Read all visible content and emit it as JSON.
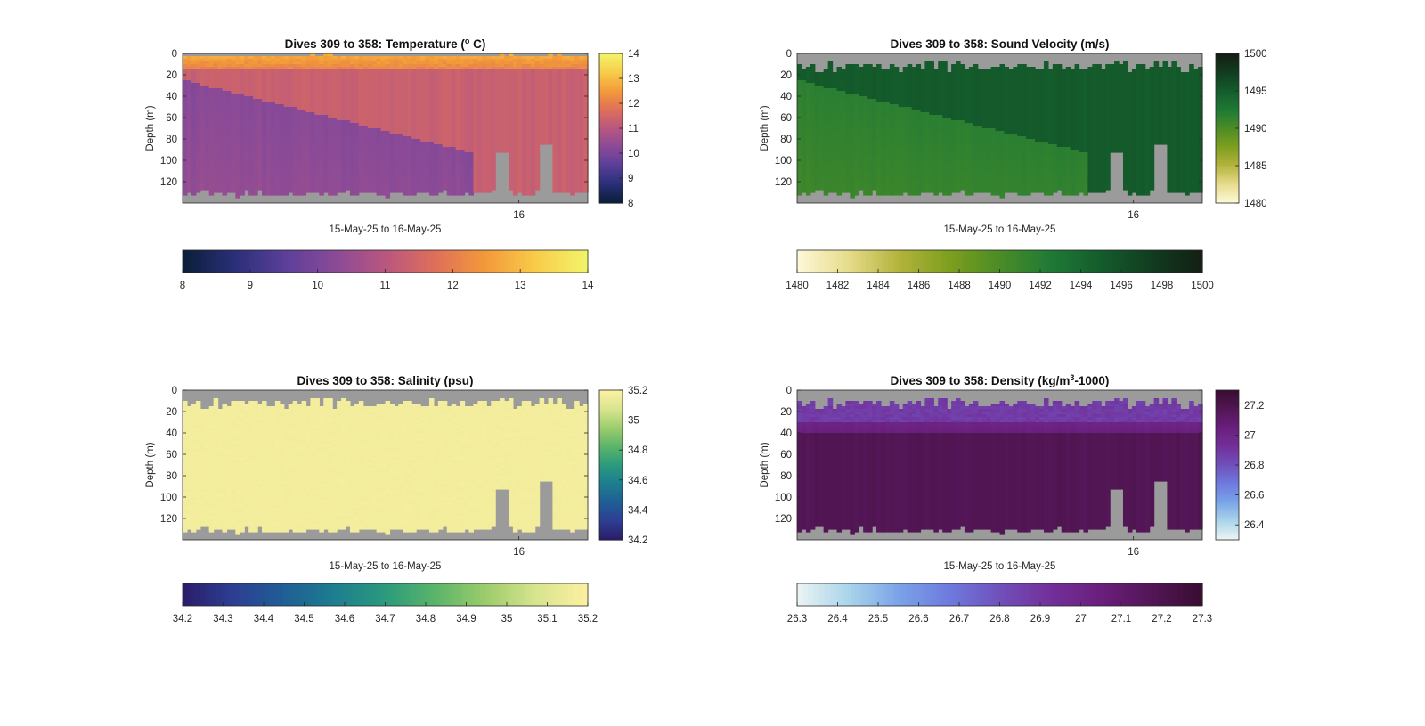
{
  "colors": {
    "mask": "#9b9b9b",
    "axis": "#262626"
  },
  "chart_data": [
    {
      "type": "heatmap",
      "variable": "temperature",
      "title_main": "Dives 309 to 358: Temperature (",
      "title_sup": "o",
      "title_end": " C)",
      "xlabel": "15-May-25 to 16-May-25",
      "ylabel": "Depth (m)",
      "x_ticks": [
        "16"
      ],
      "y_ticks": [
        0,
        20,
        40,
        60,
        80,
        100,
        120
      ],
      "ylim": [
        0,
        140
      ],
      "colorbar_range": [
        8,
        14
      ],
      "colorbar_ticks": [
        "8",
        "9",
        "10",
        "11",
        "12",
        "13",
        "14"
      ],
      "h_colorbar_ticks": [
        "8",
        "9",
        "10",
        "11",
        "12",
        "13",
        "14"
      ],
      "colormap": [
        "#0b1f3a",
        "#2a2f78",
        "#5b3f9a",
        "#8a4a97",
        "#b8577f",
        "#df6f5a",
        "#f29a3a",
        "#f8cc49",
        "#f2f36a"
      ]
    },
    {
      "type": "heatmap",
      "variable": "sound_velocity",
      "title_main": "Dives 309 to 358: Sound Velocity (m/s)",
      "title_sup": "",
      "title_end": "",
      "xlabel": "15-May-25 to 16-May-25",
      "ylabel": "Depth (m)",
      "x_ticks": [
        "16"
      ],
      "y_ticks": [
        0,
        20,
        40,
        60,
        80,
        100,
        120
      ],
      "ylim": [
        0,
        140
      ],
      "colorbar_range": [
        1480,
        1500
      ],
      "colorbar_ticks": [
        "1480",
        "1485",
        "1490",
        "1495",
        "1500"
      ],
      "h_colorbar_ticks": [
        "1480",
        "1482",
        "1484",
        "1486",
        "1488",
        "1490",
        "1492",
        "1494",
        "1496",
        "1498",
        "1500"
      ],
      "colormap": [
        "#fdf8d6",
        "#e6db8a",
        "#b3b33c",
        "#7d9f1e",
        "#4b8c26",
        "#1f7a36",
        "#145d2c",
        "#113d20",
        "#141f14"
      ]
    },
    {
      "type": "heatmap",
      "variable": "salinity",
      "title_main": "Dives 309 to 358: Salinity (psu)",
      "title_sup": "",
      "title_end": "",
      "xlabel": "15-May-25 to 16-May-25",
      "ylabel": "Depth (m)",
      "x_ticks": [
        "16"
      ],
      "y_ticks": [
        0,
        20,
        40,
        60,
        80,
        100,
        120
      ],
      "ylim": [
        0,
        140
      ],
      "colorbar_range": [
        34.2,
        35.2
      ],
      "colorbar_ticks": [
        "34.2",
        "34.4",
        "34.6",
        "34.8",
        "35",
        "35.2"
      ],
      "h_colorbar_ticks": [
        "34.2",
        "34.3",
        "34.4",
        "34.5",
        "34.6",
        "34.7",
        "34.8",
        "34.9",
        "35",
        "35.1",
        "35.2"
      ],
      "colormap": [
        "#2a1e6b",
        "#2d3f93",
        "#1f5f95",
        "#1d7e8f",
        "#2b9a7d",
        "#5bb46a",
        "#9ccc6c",
        "#d8e48e",
        "#fbf0a1"
      ]
    },
    {
      "type": "heatmap",
      "variable": "density",
      "title_main": "Dives 309 to 358: Density (kg/m",
      "title_sup": "3",
      "title_end": "-1000)",
      "xlabel": "15-May-25 to 16-May-25",
      "ylabel": "Depth (m)",
      "x_ticks": [
        "16"
      ],
      "y_ticks": [
        0,
        20,
        40,
        60,
        80,
        100,
        120
      ],
      "ylim": [
        0,
        140
      ],
      "colorbar_range": [
        26.3,
        27.3
      ],
      "colorbar_ticks": [
        "26.4",
        "26.6",
        "26.8",
        "27",
        "27.2"
      ],
      "h_colorbar_ticks": [
        "26.3",
        "26.4",
        "26.5",
        "26.6",
        "26.7",
        "26.8",
        "26.9",
        "27",
        "27.1",
        "27.2",
        "27.3"
      ],
      "colormap": [
        "#e9f3f3",
        "#a9d4ea",
        "#7aa3e8",
        "#6e7ade",
        "#7050bb",
        "#73309a",
        "#6a1f7d",
        "#531656",
        "#3a0d33"
      ]
    }
  ]
}
